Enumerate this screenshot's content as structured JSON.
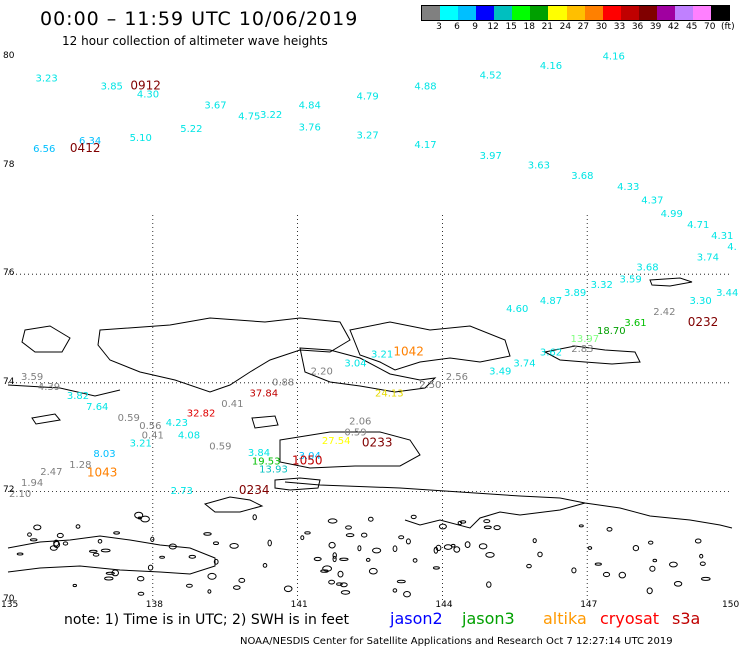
{
  "header": {
    "title": "00:00 – 11:59 UTC 10/06/2019",
    "subtitle": "12 hour collection of altimeter wave heights"
  },
  "colorbar": {
    "colors": [
      "#808080",
      "#00ffff",
      "#00bfff",
      "#0000ff",
      "#00bfbf",
      "#00ff00",
      "#00a000",
      "#ffff00",
      "#ffbf00",
      "#ff8000",
      "#ff0000",
      "#c00000",
      "#800000",
      "#a000a0",
      "#c080ff",
      "#ff80ff",
      "#000000"
    ],
    "labels": [
      "3",
      "6",
      "9",
      "12",
      "15",
      "18",
      "21",
      "24",
      "27",
      "30",
      "33",
      "36",
      "39",
      "42",
      "45",
      "70",
      "(ft)"
    ]
  },
  "axes": {
    "lat_labels": [
      "80",
      "78",
      "76",
      "74",
      "72",
      "70"
    ],
    "lon_labels": [
      "135",
      "138",
      "141",
      "144",
      "147",
      "150"
    ]
  },
  "observations": [
    {
      "text": "3.23",
      "lon": 135.8,
      "lat": 79.55,
      "color": "#00e5e5"
    },
    {
      "text": "3.85",
      "lon": 137.15,
      "lat": 79.4,
      "color": "#00e5e5"
    },
    {
      "text": "4.30",
      "lon": 137.9,
      "lat": 79.25,
      "color": "#00e5e5"
    },
    {
      "text": "3.67",
      "lon": 139.3,
      "lat": 79.05,
      "color": "#00e5e5"
    },
    {
      "text": "4.75",
      "lon": 140.0,
      "lat": 78.85,
      "color": "#00e5e5"
    },
    {
      "text": "3.22",
      "lon": 140.45,
      "lat": 78.88,
      "color": "#00e5e5"
    },
    {
      "text": "4.84",
      "lon": 141.25,
      "lat": 79.05,
      "color": "#00e5e5"
    },
    {
      "text": "4.79",
      "lon": 142.45,
      "lat": 79.22,
      "color": "#00e5e5"
    },
    {
      "text": "4.88",
      "lon": 143.65,
      "lat": 79.4,
      "color": "#00e5e5"
    },
    {
      "text": "4.52",
      "lon": 145.0,
      "lat": 79.6,
      "color": "#00e5e5"
    },
    {
      "text": "4.16",
      "lon": 146.25,
      "lat": 79.78,
      "color": "#00e5e5"
    },
    {
      "text": "4.16",
      "lon": 147.55,
      "lat": 79.95,
      "color": "#00e5e5"
    },
    {
      "text": "5.22",
      "lon": 138.8,
      "lat": 78.62,
      "color": "#00e5e5"
    },
    {
      "text": "5.10",
      "lon": 137.75,
      "lat": 78.45,
      "color": "#00e5e5"
    },
    {
      "text": "3.76",
      "lon": 141.25,
      "lat": 78.65,
      "color": "#00e5e5"
    },
    {
      "text": "3.27",
      "lon": 142.45,
      "lat": 78.5,
      "color": "#00e5e5"
    },
    {
      "text": "4.17",
      "lon": 143.65,
      "lat": 78.32,
      "color": "#00e5e5"
    },
    {
      "text": "3.97",
      "lon": 145.0,
      "lat": 78.12,
      "color": "#00e5e5"
    },
    {
      "text": "3.63",
      "lon": 146.0,
      "lat": 77.95,
      "color": "#00e5e5"
    },
    {
      "text": "3.68",
      "lon": 146.9,
      "lat": 77.75,
      "color": "#00e5e5"
    },
    {
      "text": "4.33",
      "lon": 147.85,
      "lat": 77.55,
      "color": "#00e5e5"
    },
    {
      "text": "4.37",
      "lon": 148.35,
      "lat": 77.3,
      "color": "#00e5e5"
    },
    {
      "text": "4.99",
      "lon": 148.75,
      "lat": 77.05,
      "color": "#00e5e5"
    },
    {
      "text": "4.71",
      "lon": 149.3,
      "lat": 76.85,
      "color": "#00e5e5"
    },
    {
      "text": "4.31",
      "lon": 149.8,
      "lat": 76.65,
      "color": "#00e5e5"
    },
    {
      "text": "4.",
      "lon": 150.0,
      "lat": 76.45,
      "color": "#00e5e5"
    },
    {
      "text": "6.34",
      "lon": 136.7,
      "lat": 78.4,
      "color": "#00bfff"
    },
    {
      "text": "6.56",
      "lon": 135.75,
      "lat": 78.25,
      "color": "#00bfff"
    },
    {
      "text": "3.74",
      "lon": 149.5,
      "lat": 76.25,
      "color": "#00e5e5"
    },
    {
      "text": "3.68",
      "lon": 148.25,
      "lat": 76.07,
      "color": "#00e5e5"
    },
    {
      "text": "3.59",
      "lon": 147.9,
      "lat": 75.85,
      "color": "#00e5e5"
    },
    {
      "text": "3.44",
      "lon": 149.9,
      "lat": 75.6,
      "color": "#00e5e5"
    },
    {
      "text": "3.32",
      "lon": 147.3,
      "lat": 75.75,
      "color": "#00e5e5"
    },
    {
      "text": "3.30",
      "lon": 149.35,
      "lat": 75.45,
      "color": "#00e5e5"
    },
    {
      "text": "3.89",
      "lon": 146.75,
      "lat": 75.6,
      "color": "#00e5e5"
    },
    {
      "text": "4.87",
      "lon": 146.25,
      "lat": 75.45,
      "color": "#00e5e5"
    },
    {
      "text": "4.60",
      "lon": 145.55,
      "lat": 75.3,
      "color": "#00e5e5"
    },
    {
      "text": "2.42",
      "lon": 148.6,
      "lat": 75.25,
      "color": "#808080"
    },
    {
      "text": "3.61",
      "lon": 148.0,
      "lat": 75.05,
      "color": "#00bf00"
    },
    {
      "text": "18.70",
      "lon": 147.5,
      "lat": 74.9,
      "color": "#00a000"
    },
    {
      "text": "13.97",
      "lon": 146.95,
      "lat": 74.75,
      "color": "#80ff80"
    },
    {
      "text": "2.83",
      "lon": 146.9,
      "lat": 74.57,
      "color": "#808080"
    },
    {
      "text": "3.62",
      "lon": 146.25,
      "lat": 74.5,
      "color": "#00e5e5"
    },
    {
      "text": "3.74",
      "lon": 145.7,
      "lat": 74.3,
      "color": "#00e5e5"
    },
    {
      "text": "3.49",
      "lon": 145.2,
      "lat": 74.15,
      "color": "#00e5e5"
    },
    {
      "text": "2.56",
      "lon": 144.3,
      "lat": 74.05,
      "color": "#808080"
    },
    {
      "text": "2.50",
      "lon": 143.75,
      "lat": 73.9,
      "color": "#808080"
    },
    {
      "text": "3.21",
      "lon": 142.75,
      "lat": 74.47,
      "color": "#00e5e5"
    },
    {
      "text": "3.04",
      "lon": 142.2,
      "lat": 74.3,
      "color": "#00e5e5"
    },
    {
      "text": "2.20",
      "lon": 141.5,
      "lat": 74.15,
      "color": "#808080"
    },
    {
      "text": "24.13",
      "lon": 142.9,
      "lat": 73.75,
      "color": "#e5d900"
    },
    {
      "text": "3.59",
      "lon": 135.5,
      "lat": 74.05,
      "color": "#808080"
    },
    {
      "text": "4.39",
      "lon": 135.85,
      "lat": 73.87,
      "color": "#808080"
    },
    {
      "text": "3.82",
      "lon": 136.45,
      "lat": 73.7,
      "color": "#00e5e5"
    },
    {
      "text": "7.64",
      "lon": 136.85,
      "lat": 73.5,
      "color": "#00e5e5"
    },
    {
      "text": "0.59",
      "lon": 137.5,
      "lat": 73.3,
      "color": "#808080"
    },
    {
      "text": "0.56",
      "lon": 137.95,
      "lat": 73.15,
      "color": "#808080"
    },
    {
      "text": "4.23",
      "lon": 138.5,
      "lat": 73.2,
      "color": "#00e5e5"
    },
    {
      "text": "0.41",
      "lon": 138.0,
      "lat": 72.97,
      "color": "#808080"
    },
    {
      "text": "4.08",
      "lon": 138.75,
      "lat": 72.97,
      "color": "#00e5e5"
    },
    {
      "text": "3.21",
      "lon": 137.75,
      "lat": 72.83,
      "color": "#00e5e5"
    },
    {
      "text": "8.03",
      "lon": 137.0,
      "lat": 72.63,
      "color": "#00bfff"
    },
    {
      "text": "1.28",
      "lon": 136.5,
      "lat": 72.43,
      "color": "#808080"
    },
    {
      "text": "2.47",
      "lon": 135.9,
      "lat": 72.3,
      "color": "#808080"
    },
    {
      "text": "1.94",
      "lon": 135.5,
      "lat": 72.1,
      "color": "#808080"
    },
    {
      "text": "2.10",
      "lon": 135.25,
      "lat": 71.9,
      "color": "#808080"
    },
    {
      "text": "32.82",
      "lon": 139.0,
      "lat": 73.38,
      "color": "#e00000"
    },
    {
      "text": "0.41",
      "lon": 139.65,
      "lat": 73.55,
      "color": "#808080"
    },
    {
      "text": "37.84",
      "lon": 140.3,
      "lat": 73.75,
      "color": "#c00000"
    },
    {
      "text": "0.88",
      "lon": 140.7,
      "lat": 73.95,
      "color": "#808080"
    },
    {
      "text": "0.59",
      "lon": 139.4,
      "lat": 72.77,
      "color": "#808080"
    },
    {
      "text": "3.84",
      "lon": 140.2,
      "lat": 72.65,
      "color": "#00e5e5"
    },
    {
      "text": "19.53",
      "lon": 140.35,
      "lat": 72.5,
      "color": "#00bf00"
    },
    {
      "text": "3.04",
      "lon": 141.25,
      "lat": 72.6,
      "color": "#00bfff"
    },
    {
      "text": "13.93",
      "lon": 140.5,
      "lat": 72.35,
      "color": "#00bfbf"
    },
    {
      "text": "2.06",
      "lon": 142.3,
      "lat": 73.23,
      "color": "#808080"
    },
    {
      "text": "0.59",
      "lon": 142.2,
      "lat": 73.03,
      "color": "#808080"
    },
    {
      "text": "27.54",
      "lon": 141.8,
      "lat": 72.87,
      "color": "#ffff00"
    },
    {
      "text": "2.73",
      "lon": 138.6,
      "lat": 71.95,
      "color": "#00e5e5"
    }
  ],
  "time_labels": [
    {
      "text": "0912",
      "lon": 137.85,
      "lat": 79.4,
      "color": "#800000"
    },
    {
      "text": "0412",
      "lon": 136.6,
      "lat": 78.25,
      "color": "#800000"
    },
    {
      "text": "1042",
      "lon": 143.3,
      "lat": 74.5,
      "color": "#ff8000"
    },
    {
      "text": "0232",
      "lon": 149.4,
      "lat": 75.05,
      "color": "#800000"
    },
    {
      "text": "0233",
      "lon": 142.65,
      "lat": 72.83,
      "color": "#800000"
    },
    {
      "text": "1050",
      "lon": 141.2,
      "lat": 72.5,
      "color": "#c00000"
    },
    {
      "text": "1043",
      "lon": 136.95,
      "lat": 72.27,
      "color": "#ff8000"
    },
    {
      "text": "0234",
      "lon": 140.1,
      "lat": 71.95,
      "color": "#800000"
    }
  ],
  "footer": {
    "note": "note: 1) Time is in UTC; 2) SWH is in feet",
    "satellites": [
      {
        "name": "jason2",
        "color": "#0000ff"
      },
      {
        "name": "jason3",
        "color": "#00a000"
      },
      {
        "name": "altika",
        "color": "#ff9900"
      },
      {
        "name": "cryosat",
        "color": "#ff0000"
      },
      {
        "name": "s3a",
        "color": "#c00000"
      }
    ],
    "credit": "NOAA/NESDIS Center for Satellite Applications and Research   Oct  7 12:27:14 UTC 2019"
  }
}
